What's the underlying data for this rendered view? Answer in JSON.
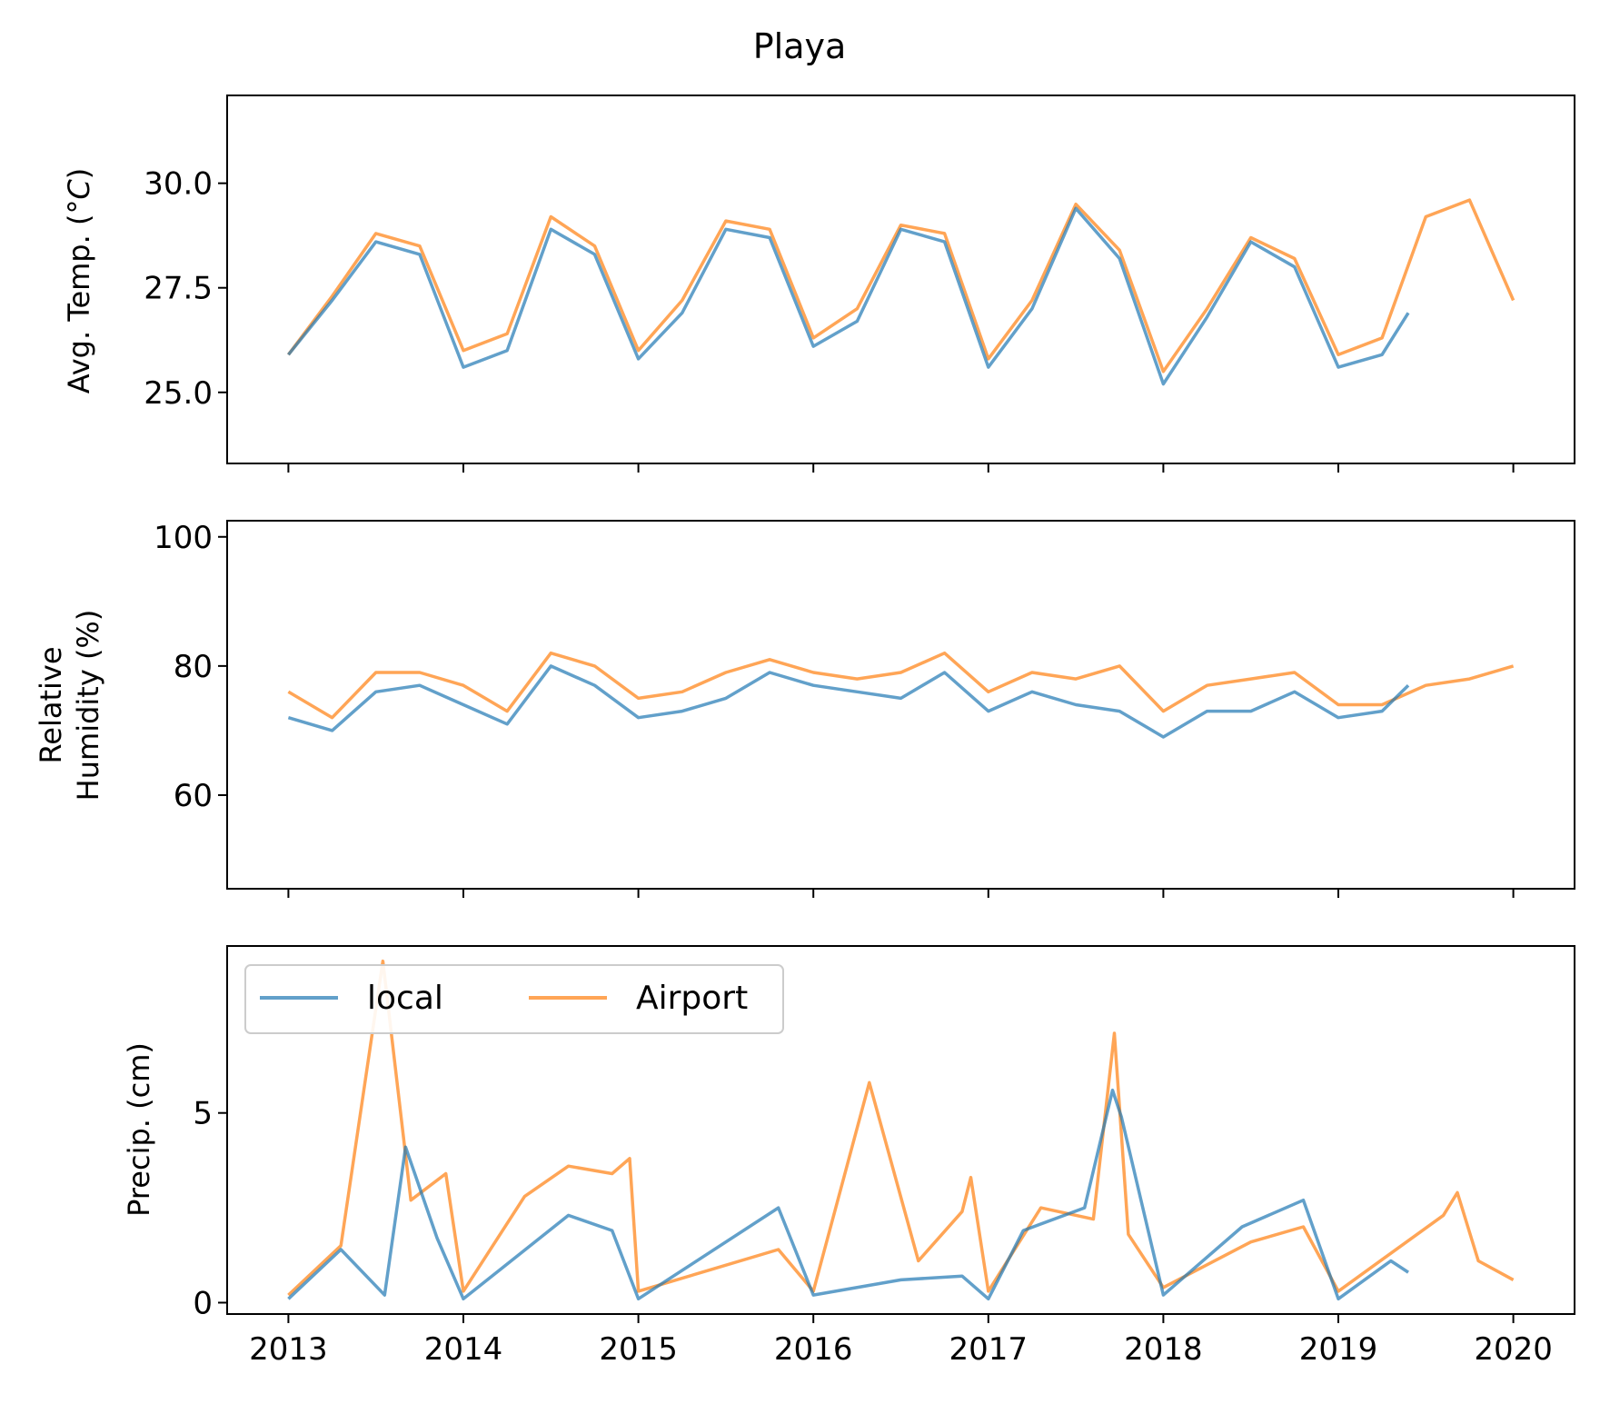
{
  "title": "Playa",
  "colors": {
    "local": "#1f77b4",
    "airport": "#ff7f0e"
  },
  "legend": {
    "placement": "upper-left",
    "columns": 2,
    "local_label": "local",
    "airport_label": "Airport"
  },
  "x_tick_labels": [
    "2013",
    "2014",
    "2015",
    "2016",
    "2017",
    "2018",
    "2019",
    "2020"
  ],
  "chart_data": [
    {
      "type": "line",
      "ylabel": "Avg. Temp. (°C)",
      "ylabel_main": "Avg. Temp. (°",
      "ylabel_unit": "C",
      "ylabel_tail": ")",
      "xlim": [
        2012.65,
        2020.35
      ],
      "ylim": [
        23.3,
        32.1
      ],
      "yticks": [
        25.0,
        27.5,
        30.0
      ],
      "ytick_labels": [
        "25.0",
        "27.5",
        "30.0"
      ],
      "grid": false,
      "series": [
        {
          "name": "local",
          "x": [
            2013.0,
            2013.25,
            2013.5,
            2013.75,
            2014.0,
            2014.25,
            2014.5,
            2014.75,
            2015.0,
            2015.25,
            2015.5,
            2015.75,
            2016.0,
            2016.25,
            2016.5,
            2016.75,
            2017.0,
            2017.25,
            2017.5,
            2017.75,
            2018.0,
            2018.25,
            2018.5,
            2018.75,
            2019.0,
            2019.25,
            2019.4
          ],
          "y": [
            25.9,
            27.2,
            28.6,
            28.3,
            25.6,
            26.0,
            28.9,
            28.3,
            25.8,
            26.9,
            28.9,
            28.7,
            26.1,
            26.7,
            28.9,
            28.6,
            25.6,
            27.0,
            29.4,
            28.2,
            25.2,
            26.8,
            28.6,
            28.0,
            25.6,
            25.9,
            26.9
          ]
        },
        {
          "name": "Airport",
          "x": [
            2013.0,
            2013.25,
            2013.5,
            2013.75,
            2014.0,
            2014.25,
            2014.5,
            2014.75,
            2015.0,
            2015.25,
            2015.5,
            2015.75,
            2016.0,
            2016.25,
            2016.5,
            2016.75,
            2017.0,
            2017.25,
            2017.5,
            2017.75,
            2018.0,
            2018.25,
            2018.5,
            2018.75,
            2019.0,
            2019.25,
            2019.5,
            2019.75,
            2020.0
          ],
          "y": [
            25.9,
            27.3,
            28.8,
            28.5,
            26.0,
            26.4,
            29.2,
            28.5,
            26.0,
            27.2,
            29.1,
            28.9,
            26.3,
            27.0,
            29.0,
            28.8,
            25.8,
            27.2,
            29.5,
            28.4,
            25.5,
            27.0,
            28.7,
            28.2,
            25.9,
            26.3,
            29.2,
            29.6,
            27.2
          ]
        }
      ]
    },
    {
      "type": "line",
      "ylabel": "Relative Humidity (%)",
      "ylabel_line1": "Relative",
      "ylabel_line2": "Humidity (%)",
      "xlim": [
        2012.65,
        2020.35
      ],
      "ylim": [
        45.5,
        102.5
      ],
      "yticks": [
        60,
        80,
        100
      ],
      "ytick_labels": [
        "60",
        "80",
        "100"
      ],
      "grid": false,
      "series": [
        {
          "name": "local",
          "x": [
            2013.0,
            2013.25,
            2013.5,
            2013.75,
            2014.0,
            2014.25,
            2014.5,
            2014.75,
            2015.0,
            2015.25,
            2015.5,
            2015.75,
            2016.0,
            2016.25,
            2016.5,
            2016.75,
            2017.0,
            2017.25,
            2017.5,
            2017.75,
            2018.0,
            2018.25,
            2018.5,
            2018.75,
            2019.0,
            2019.25,
            2019.4
          ],
          "y": [
            72,
            70,
            76,
            77,
            74,
            71,
            80,
            77,
            72,
            73,
            75,
            79,
            77,
            76,
            75,
            79,
            73,
            76,
            74,
            73,
            69,
            73,
            73,
            76,
            72,
            73,
            77
          ]
        },
        {
          "name": "Airport",
          "x": [
            2013.0,
            2013.25,
            2013.5,
            2013.75,
            2014.0,
            2014.25,
            2014.5,
            2014.75,
            2015.0,
            2015.25,
            2015.5,
            2015.75,
            2016.0,
            2016.25,
            2016.5,
            2016.75,
            2017.0,
            2017.25,
            2017.5,
            2017.75,
            2018.0,
            2018.25,
            2018.5,
            2018.75,
            2019.0,
            2019.25,
            2019.5,
            2019.75,
            2020.0
          ],
          "y": [
            76,
            72,
            79,
            79,
            77,
            73,
            82,
            80,
            75,
            76,
            79,
            81,
            79,
            78,
            79,
            82,
            76,
            79,
            78,
            80,
            73,
            77,
            78,
            79,
            74,
            74,
            77,
            78,
            80
          ]
        }
      ]
    },
    {
      "type": "line",
      "ylabel": "Precip. (cm)",
      "xlabel": "",
      "xlim": [
        2012.65,
        2020.35
      ],
      "ylim": [
        -0.3,
        9.4
      ],
      "yticks": [
        0,
        5
      ],
      "ytick_labels": [
        "0",
        "5"
      ],
      "grid": false,
      "series": [
        {
          "name": "local",
          "x": [
            2013.0,
            2013.3,
            2013.55,
            2013.67,
            2013.85,
            2014.0,
            2014.6,
            2014.85,
            2015.0,
            2015.8,
            2016.0,
            2016.5,
            2016.85,
            2017.0,
            2017.2,
            2017.55,
            2017.71,
            2017.76,
            2018.0,
            2018.45,
            2018.8,
            2019.0,
            2019.3,
            2019.4
          ],
          "y": [
            0.1,
            1.4,
            0.2,
            4.1,
            1.7,
            0.1,
            2.3,
            1.9,
            0.1,
            2.5,
            0.2,
            0.6,
            0.7,
            0.1,
            1.9,
            2.5,
            5.6,
            4.9,
            0.2,
            2.0,
            2.7,
            0.1,
            1.1,
            0.8
          ]
        },
        {
          "name": "Airport",
          "x": [
            2013.0,
            2013.3,
            2013.54,
            2013.7,
            2013.9,
            2014.0,
            2014.35,
            2014.6,
            2014.85,
            2014.95,
            2015.0,
            2015.8,
            2016.0,
            2016.32,
            2016.6,
            2016.85,
            2016.9,
            2017.0,
            2017.3,
            2017.6,
            2017.72,
            2017.8,
            2018.0,
            2018.5,
            2018.8,
            2019.0,
            2019.6,
            2019.68,
            2019.8,
            2020.0
          ],
          "y": [
            0.2,
            1.5,
            9.0,
            2.7,
            3.4,
            0.3,
            2.8,
            3.6,
            3.4,
            3.8,
            0.3,
            1.4,
            0.3,
            5.8,
            1.1,
            2.4,
            3.3,
            0.3,
            2.5,
            2.2,
            7.1,
            1.8,
            0.4,
            1.6,
            2.0,
            0.3,
            2.3,
            2.9,
            1.1,
            0.6
          ]
        }
      ]
    }
  ]
}
